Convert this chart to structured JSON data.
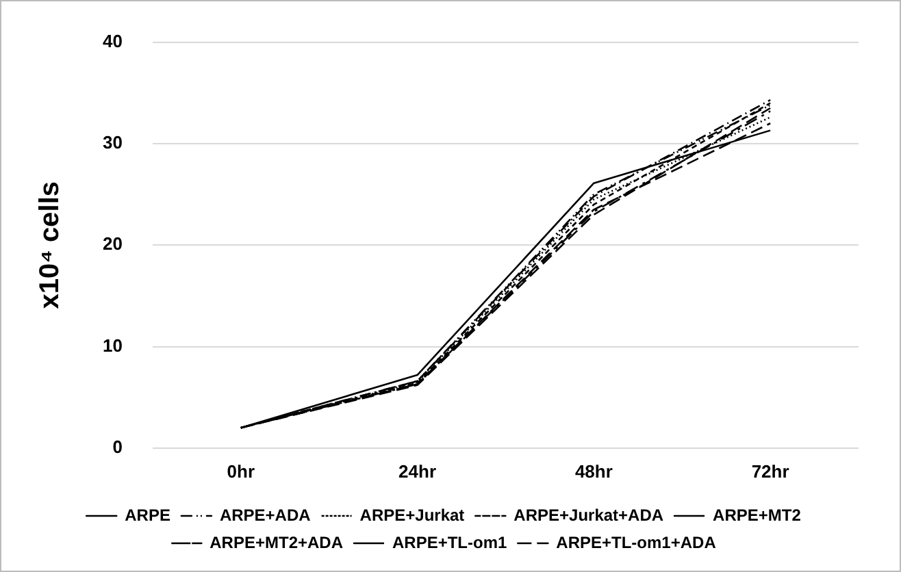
{
  "chart_data": {
    "type": "line",
    "ylabel": "x10⁴ cells",
    "categories": [
      "0hr",
      "24hr",
      "48hr",
      "72hr"
    ],
    "ylim": [
      0,
      40
    ],
    "yticks": [
      0,
      10,
      20,
      30,
      40
    ],
    "grid": "y",
    "legend": "bottom",
    "marker": "none",
    "series": [
      {
        "name": "ARPE",
        "color": "#000000",
        "line_style": "solid",
        "values": [
          2,
          7.2,
          26.1,
          31.3
        ]
      },
      {
        "name": "ARPE+ADA",
        "color": "#000000",
        "line_style": "dashdotdot",
        "values": [
          2,
          6.6,
          25.0,
          33.8
        ]
      },
      {
        "name": "ARPE+Jurkat",
        "color": "#000000",
        "line_style": "dotted",
        "values": [
          2,
          6.5,
          24.5,
          32.6
        ]
      },
      {
        "name": "ARPE+Jurkat+ADA",
        "color": "#000000",
        "line_style": "dashed",
        "values": [
          2,
          6.4,
          24.0,
          34.0
        ]
      },
      {
        "name": "ARPE+MT2",
        "color": "#000000",
        "line_style": "longdash",
        "values": [
          2,
          6.3,
          23.5,
          32.0
        ]
      },
      {
        "name": "ARPE+MT2+ADA",
        "color": "#000000",
        "line_style": "dashdot",
        "values": [
          2,
          6.6,
          24.8,
          34.3
        ]
      },
      {
        "name": "ARPE+TL-om1",
        "color": "#000000",
        "line_style": "longdash",
        "values": [
          2,
          6.2,
          23.0,
          33.5
        ]
      },
      {
        "name": "ARPE+TL-om1+ADA",
        "color": "#000000",
        "line_style": "longdashdot",
        "values": [
          2,
          6.3,
          23.3,
          33.2
        ]
      }
    ]
  }
}
